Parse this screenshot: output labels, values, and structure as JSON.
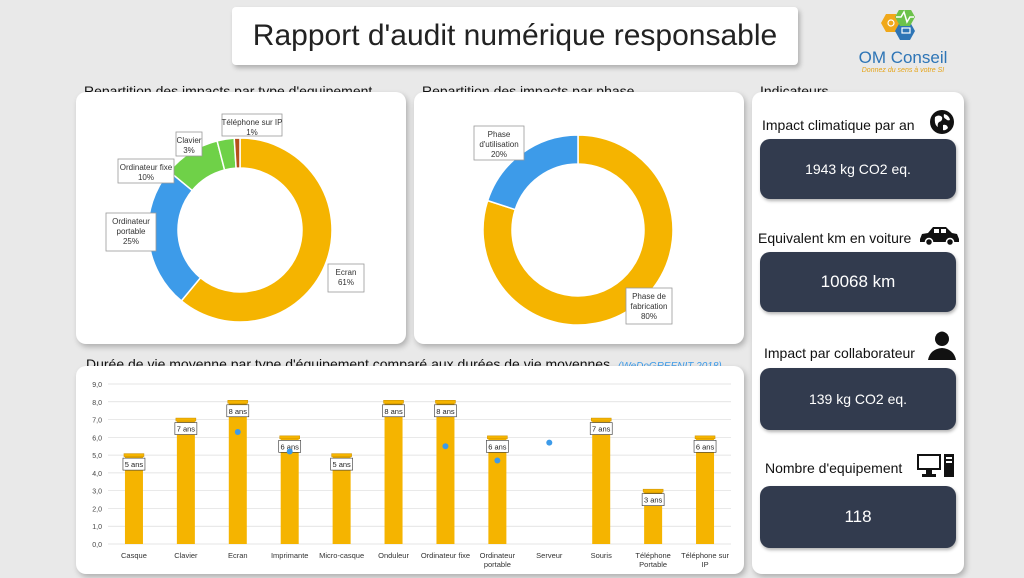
{
  "header": {
    "title": "Rapport d'audit numérique responsable"
  },
  "logo": {
    "name": "OM Conseil",
    "tagline": "Donnez du sens à votre SI"
  },
  "colors": {
    "equipment_gold": "#f5b400",
    "blue": "#3d9be9",
    "green": "#6fd148",
    "brown": "#b5501a",
    "dark_box": "#323b4e"
  },
  "donut1": {
    "title": "Repartition des impacts par type d'equipement",
    "slices": [
      {
        "name": "Ecran",
        "value": 61,
        "label_name": "Ecran",
        "label_value": "61%",
        "color": "#f5b400"
      },
      {
        "name": "Ordinateur portable",
        "value": 25,
        "label_name": "Ordinateur portable",
        "label_value": "25%",
        "color": "#3d9be9"
      },
      {
        "name": "Ordinateur fixe",
        "value": 10,
        "label_name": "Ordinateur fixe",
        "label_value": "10%",
        "color": "#6fd148"
      },
      {
        "name": "Clavier",
        "value": 3,
        "label_name": "Clavier",
        "label_value": "3%",
        "color": "#6fd148"
      },
      {
        "name": "Téléphone sur IP",
        "value": 1,
        "label_name": "Téléphone sur IP",
        "label_value": "1%",
        "color": "#b5501a"
      }
    ]
  },
  "donut2": {
    "title": "Repartition des impacts par phase",
    "slices": [
      {
        "name": "Phase de fabrication",
        "value": 80,
        "label_name": "Phase de fabrication",
        "label_value": "80%",
        "color": "#f5b400"
      },
      {
        "name": "Phase d'utilisation",
        "value": 20,
        "label_name": "Phase d'utilisation",
        "label_value": "20%",
        "color": "#3d9be9"
      }
    ]
  },
  "bar_chart": {
    "title": "Durée de vie moyenne par type d'équipement comparé aux durées de vie moyennes",
    "source": "(WeDoGREENIT 2018)"
  },
  "chart_data": {
    "type": "bar",
    "categories": [
      "Casque",
      "Clavier",
      "Ecran",
      "Imprimante",
      "Micro-casque",
      "Onduleur",
      "Ordinateur fixe",
      "Ordinateur portable",
      "Serveur",
      "Souris",
      "Téléphone Portable",
      "Téléphone sur IP"
    ],
    "values": [
      5,
      7,
      8,
      6,
      5,
      8,
      8,
      6,
      null,
      7,
      3,
      6
    ],
    "data_labels": [
      "5 ans",
      "7 ans",
      "8 ans",
      "6 ans",
      "5 ans",
      "8 ans",
      "8 ans",
      "6 ans",
      "",
      "7 ans",
      "3 ans",
      "6 ans"
    ],
    "reference_points": [
      null,
      null,
      6.3,
      5.2,
      null,
      null,
      5.5,
      4.7,
      5.7,
      null,
      null,
      null
    ],
    "yticks": [
      "0,0",
      "1,0",
      "2,0",
      "3,0",
      "4,0",
      "5,0",
      "6,0",
      "7,0",
      "8,0",
      "9,0"
    ],
    "ylim": [
      0,
      9
    ],
    "xlabel": "",
    "ylabel": "",
    "grid": true
  },
  "indicators": {
    "title": "Indicateurs",
    "items": [
      {
        "label": "Impact climatique par an",
        "value": "1943 kg CO2 eq.",
        "icon": "globe-icon"
      },
      {
        "label": "Equivalent km en voiture",
        "value": "10068 km",
        "icon": "car-icon"
      },
      {
        "label": "Impact par collaborateur",
        "value": "139 kg CO2 eq.",
        "icon": "person-icon"
      },
      {
        "label": "Nombre d'equipement",
        "value": "118",
        "icon": "computer-icon"
      }
    ]
  }
}
